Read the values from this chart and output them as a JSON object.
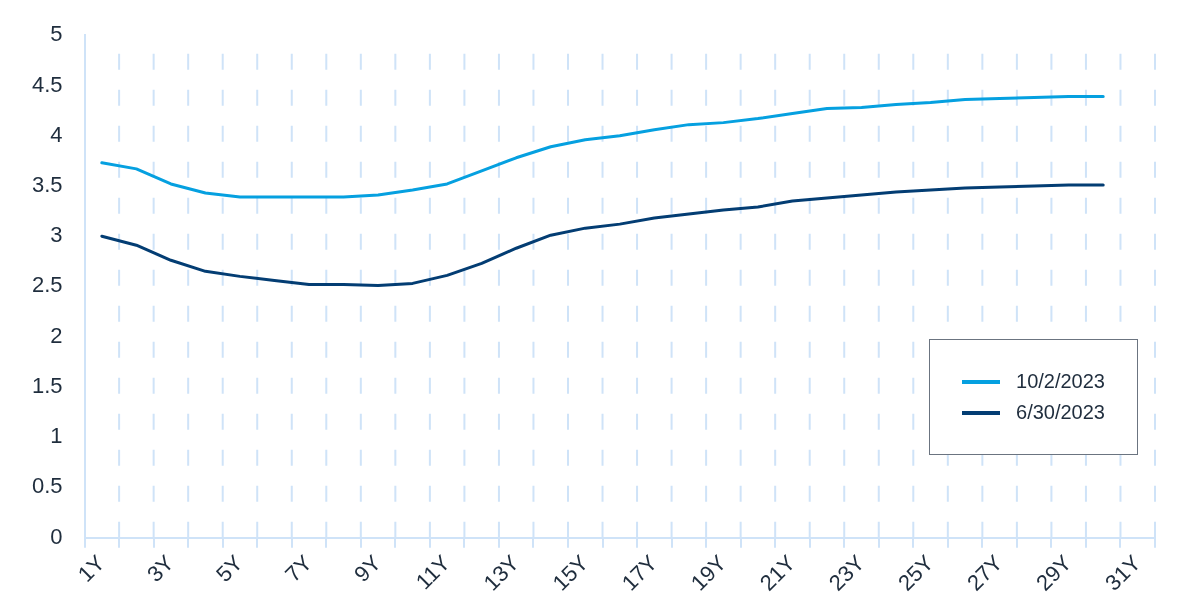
{
  "chart_data": {
    "type": "line",
    "categories": [
      "1Y",
      null,
      "3Y",
      null,
      "5Y",
      null,
      "7Y",
      null,
      "9Y",
      null,
      "11Y",
      null,
      "13Y",
      null,
      "15Y",
      null,
      "17Y",
      null,
      "19Y",
      null,
      "21Y",
      null,
      "23Y",
      null,
      "25Y",
      null,
      "27Y",
      null,
      "29Y",
      null,
      "31Y"
    ],
    "series": [
      {
        "name": "10/2/2023",
        "color": "#05a0e0",
        "values": [
          3.73,
          3.67,
          3.52,
          3.43,
          3.39,
          3.39,
          3.39,
          3.39,
          3.41,
          3.46,
          3.52,
          3.65,
          3.78,
          3.89,
          3.96,
          4.0,
          4.06,
          4.11,
          4.13,
          4.17,
          4.22,
          4.27,
          4.28,
          4.31,
          4.33,
          4.36,
          4.37,
          4.38,
          4.39,
          4.39,
          null
        ]
      },
      {
        "name": "6/30/2023",
        "color": "#033d73",
        "values": [
          3.0,
          2.91,
          2.76,
          2.65,
          2.6,
          2.56,
          2.52,
          2.52,
          2.51,
          2.53,
          2.61,
          2.73,
          2.88,
          3.01,
          3.08,
          3.12,
          3.18,
          3.22,
          3.26,
          3.29,
          3.35,
          3.38,
          3.41,
          3.44,
          3.46,
          3.48,
          3.49,
          3.5,
          3.51,
          3.51,
          null
        ]
      }
    ],
    "ylim": [
      0,
      5
    ],
    "yticks": [
      0,
      0.5,
      1,
      1.5,
      2,
      2.5,
      3,
      3.5,
      4,
      4.5,
      5
    ],
    "grid": "x",
    "legend": "bottom right",
    "marker": "none",
    "line_style": "solid"
  }
}
